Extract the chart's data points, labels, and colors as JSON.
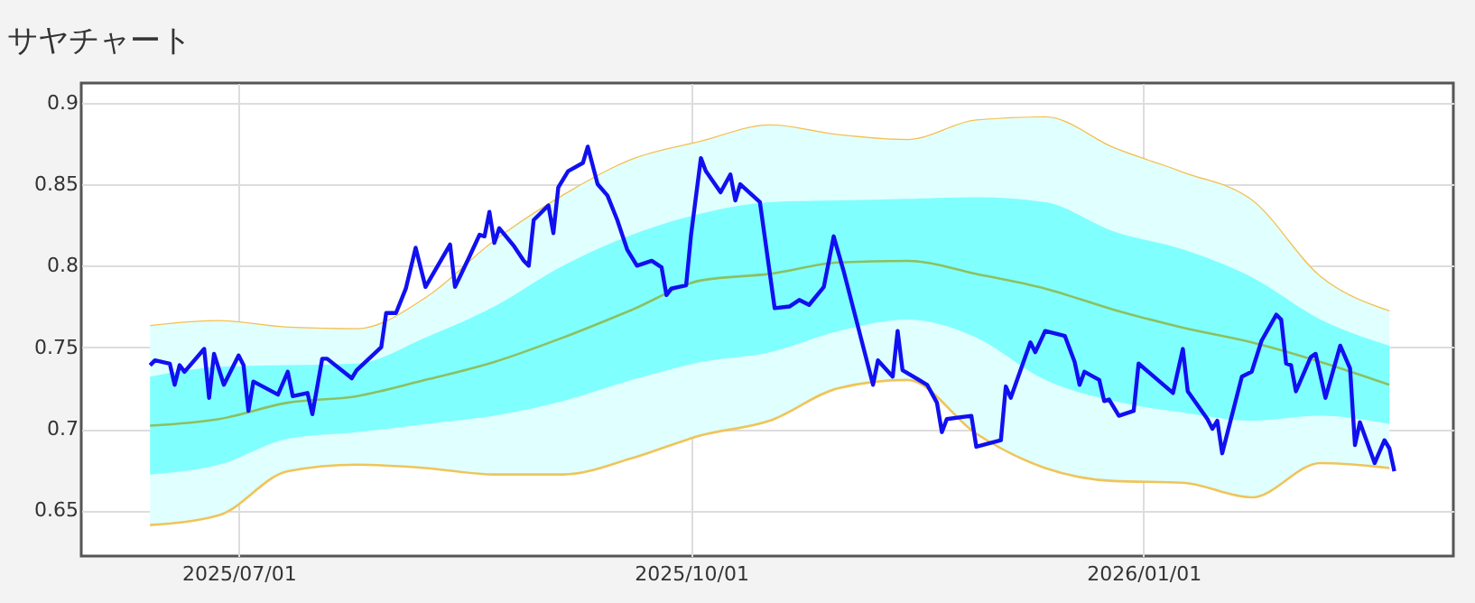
{
  "chart_data": {
    "type": "line",
    "title": "サヤチャート",
    "xlim": [
      "2025-05-30",
      "2026-03-05"
    ],
    "xticks": [
      {
        "value": "2025-07-01",
        "label": "2025/07/01"
      },
      {
        "value": "2025-10-01",
        "label": "2025/10/01"
      },
      {
        "value": "2026-01-01",
        "label": "2026/01/01"
      }
    ],
    "ylim": [
      0.622,
      0.912
    ],
    "yticks": [
      0.65,
      0.7,
      0.75,
      0.8,
      0.85,
      0.9
    ],
    "grid": true,
    "series": [
      {
        "type": "line",
        "color": "#f5c050",
        "x": [
          "2025-06-13",
          "2025-06-27",
          "2025-07-11",
          "2025-07-25",
          "2025-08-08",
          "2025-08-22",
          "2025-09-05",
          "2025-09-19",
          "2025-10-03",
          "2025-10-17",
          "2025-10-31",
          "2025-11-14",
          "2025-11-28",
          "2025-12-12",
          "2025-12-26",
          "2026-01-09",
          "2026-01-23",
          "2026-02-06",
          "2026-02-20"
        ],
        "values": [
          0.763,
          0.766,
          0.762,
          0.761,
          0.78,
          0.815,
          0.843,
          0.865,
          0.876,
          0.886,
          0.88,
          0.877,
          0.889,
          0.891,
          0.872,
          0.857,
          0.84,
          0.793,
          0.772
        ],
        "lower": [
          0.641,
          0.647,
          0.674,
          0.678,
          0.676,
          0.672,
          0.672,
          0.682,
          0.696,
          0.705,
          0.725,
          0.73,
          0.697,
          0.676,
          0.668,
          0.667,
          0.658,
          0.679,
          0.676
        ],
        "upper": [
          0.763,
          0.766,
          0.762,
          0.761,
          0.78,
          0.815,
          0.843,
          0.865,
          0.876,
          0.886,
          0.88,
          0.877,
          0.889,
          0.891,
          0.872,
          0.857,
          0.84,
          0.793,
          0.772
        ]
      },
      {
        "type": "line",
        "color": "#f0c45a",
        "x": [
          "2025-06-13",
          "2025-06-27",
          "2025-07-11",
          "2025-07-25",
          "2025-08-08",
          "2025-08-22",
          "2025-09-05",
          "2025-09-19",
          "2025-10-03",
          "2025-10-17",
          "2025-10-31",
          "2025-11-14",
          "2025-11-28",
          "2025-12-12",
          "2025-12-26",
          "2026-01-09",
          "2026-01-23",
          "2026-02-06",
          "2026-02-20"
        ],
        "values": [
          0.641,
          0.647,
          0.674,
          0.678,
          0.676,
          0.672,
          0.672,
          0.682,
          0.696,
          0.705,
          0.725,
          0.73,
          0.697,
          0.676,
          0.668,
          0.667,
          0.658,
          0.679,
          0.676
        ]
      },
      {
        "type": "line",
        "color": "#8cc060",
        "x": [
          "2025-06-13",
          "2025-06-27",
          "2025-07-11",
          "2025-07-25",
          "2025-08-08",
          "2025-08-22",
          "2025-09-05",
          "2025-09-19",
          "2025-10-03",
          "2025-10-17",
          "2025-10-31",
          "2025-11-14",
          "2025-11-28",
          "2025-12-12",
          "2025-12-26",
          "2026-01-09",
          "2026-01-23",
          "2026-02-06",
          "2026-02-20"
        ],
        "values": [
          0.702,
          0.706,
          0.716,
          0.72,
          0.73,
          0.741,
          0.756,
          0.773,
          0.791,
          0.795,
          0.802,
          0.803,
          0.795,
          0.786,
          0.773,
          0.762,
          0.753,
          0.741,
          0.727
        ],
        "lower": [
          0.672,
          0.678,
          0.694,
          0.698,
          0.703,
          0.708,
          0.717,
          0.73,
          0.741,
          0.747,
          0.76,
          0.767,
          0.756,
          0.73,
          0.717,
          0.71,
          0.705,
          0.708,
          0.703
        ],
        "upper": [
          0.732,
          0.738,
          0.739,
          0.74,
          0.756,
          0.775,
          0.8,
          0.819,
          0.832,
          0.839,
          0.84,
          0.841,
          0.842,
          0.839,
          0.821,
          0.81,
          0.793,
          0.767,
          0.751
        ]
      },
      {
        "color": "#1010f0",
        "x": [
          "2025-06-13",
          "2025-06-14",
          "2025-06-17",
          "2025-06-18",
          "2025-06-19",
          "2025-06-20",
          "2025-06-24",
          "2025-06-25",
          "2025-06-26",
          "2025-06-28",
          "2025-07-01",
          "2025-07-02",
          "2025-07-03",
          "2025-07-04",
          "2025-07-09",
          "2025-07-11",
          "2025-07-12",
          "2025-07-15",
          "2025-07-16",
          "2025-07-18",
          "2025-07-19",
          "2025-07-24",
          "2025-07-25",
          "2025-07-30",
          "2025-07-31",
          "2025-08-02",
          "2025-08-04",
          "2025-08-06",
          "2025-08-08",
          "2025-08-13",
          "2025-08-14",
          "2025-08-17",
          "2025-08-19",
          "2025-08-20",
          "2025-08-21",
          "2025-08-22",
          "2025-08-23",
          "2025-08-26",
          "2025-08-28",
          "2025-08-29",
          "2025-08-30",
          "2025-09-02",
          "2025-09-03",
          "2025-09-04",
          "2025-09-06",
          "2025-09-09",
          "2025-09-10",
          "2025-09-12",
          "2025-09-14",
          "2025-09-16",
          "2025-09-18",
          "2025-09-20",
          "2025-09-23",
          "2025-09-25",
          "2025-09-26",
          "2025-09-27",
          "2025-09-30",
          "2025-10-01",
          "2025-10-03",
          "2025-10-04",
          "2025-10-07",
          "2025-10-09",
          "2025-10-10",
          "2025-10-11",
          "2025-10-15",
          "2025-10-18",
          "2025-10-21",
          "2025-10-23",
          "2025-10-25",
          "2025-10-28",
          "2025-10-30",
          "2025-11-01",
          "2025-11-07",
          "2025-11-08",
          "2025-11-11",
          "2025-11-12",
          "2025-11-13",
          "2025-11-18",
          "2025-11-20",
          "2025-11-21",
          "2025-11-22",
          "2025-11-27",
          "2025-11-28",
          "2025-12-03",
          "2025-12-04",
          "2025-12-05",
          "2025-12-09",
          "2025-12-10",
          "2025-12-12",
          "2025-12-16",
          "2025-12-18",
          "2025-12-19",
          "2025-12-20",
          "2025-12-23",
          "2025-12-24",
          "2025-12-25",
          "2025-12-27",
          "2025-12-30",
          "2025-12-31",
          "2026-01-07",
          "2026-01-09",
          "2026-01-10",
          "2026-01-14",
          "2026-01-15",
          "2026-01-16",
          "2026-01-17",
          "2026-01-21",
          "2026-01-23",
          "2026-01-25",
          "2026-01-28",
          "2026-01-29",
          "2026-01-30",
          "2026-01-31",
          "2026-02-01",
          "2026-02-04",
          "2026-02-05",
          "2026-02-07",
          "2026-02-10",
          "2026-02-12",
          "2026-02-13",
          "2026-02-14",
          "2026-02-17",
          "2026-02-19",
          "2026-02-20",
          "2026-02-21"
        ],
        "values": [
          0.739,
          0.742,
          0.74,
          0.727,
          0.739,
          0.735,
          0.749,
          0.719,
          0.746,
          0.727,
          0.745,
          0.739,
          0.711,
          0.729,
          0.721,
          0.735,
          0.72,
          0.722,
          0.709,
          0.743,
          0.743,
          0.731,
          0.736,
          0.75,
          0.771,
          0.771,
          0.786,
          0.811,
          0.787,
          0.813,
          0.787,
          0.806,
          0.819,
          0.818,
          0.833,
          0.814,
          0.823,
          0.812,
          0.803,
          0.8,
          0.828,
          0.837,
          0.82,
          0.848,
          0.858,
          0.863,
          0.873,
          0.85,
          0.843,
          0.828,
          0.81,
          0.8,
          0.803,
          0.799,
          0.782,
          0.786,
          0.788,
          0.819,
          0.866,
          0.858,
          0.845,
          0.856,
          0.84,
          0.85,
          0.839,
          0.774,
          0.775,
          0.779,
          0.776,
          0.787,
          0.818,
          0.797,
          0.727,
          0.742,
          0.732,
          0.76,
          0.736,
          0.727,
          0.716,
          0.698,
          0.706,
          0.708,
          0.689,
          0.693,
          0.726,
          0.719,
          0.753,
          0.747,
          0.76,
          0.757,
          0.741,
          0.727,
          0.735,
          0.73,
          0.717,
          0.718,
          0.708,
          0.711,
          0.74,
          0.722,
          0.749,
          0.723,
          0.706,
          0.7,
          0.705,
          0.685,
          0.732,
          0.735,
          0.754,
          0.77,
          0.767,
          0.74,
          0.739,
          0.723,
          0.744,
          0.746,
          0.719,
          0.751,
          0.737,
          0.69,
          0.704,
          0.679,
          0.693,
          0.688,
          0.674
        ]
      }
    ]
  }
}
